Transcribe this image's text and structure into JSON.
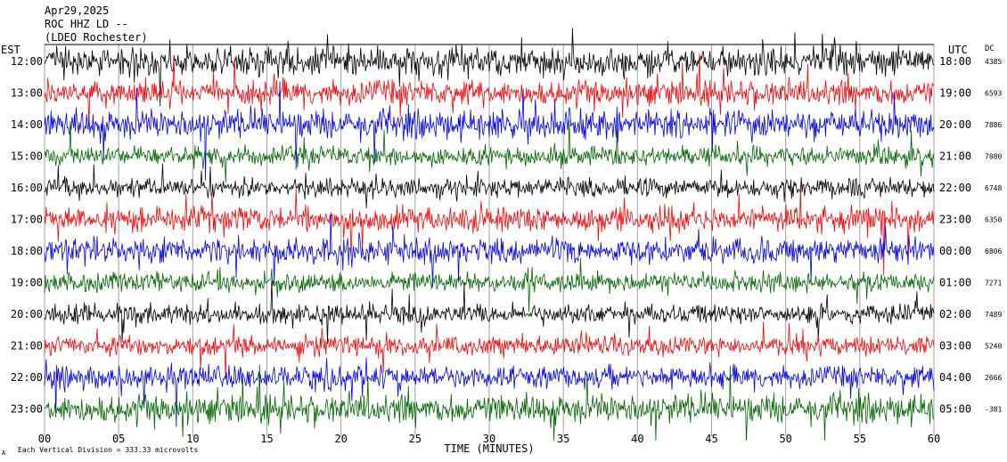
{
  "header": {
    "date": "Apr29,2025",
    "station": "ROC HHZ LD --",
    "location": "(LDEO Rochester)"
  },
  "labels": {
    "left_tz": "EST",
    "right_tz": "UTC",
    "dc": "DC",
    "xlabel": "TIME (MINUTES)",
    "footer": "Each Vertical Division = 333.33 microvolts",
    "corner_mark": "A"
  },
  "colors": {
    "cycle": [
      "#000000",
      "#ff0000",
      "#0000ff",
      "#006400"
    ],
    "grid": "#a0a0a0"
  },
  "chart_data": {
    "type": "line",
    "xlabel": "TIME (MINUTES)",
    "xlim": [
      0,
      60
    ],
    "x_ticks": [
      "00",
      "05",
      "10",
      "15",
      "20",
      "25",
      "30",
      "35",
      "40",
      "45",
      "50",
      "55",
      "60"
    ],
    "x_tick_values": [
      0,
      5,
      10,
      15,
      20,
      25,
      30,
      35,
      40,
      45,
      50,
      55,
      60
    ],
    "rows": [
      {
        "est": "12:00",
        "utc": "18:00",
        "dc": "4385",
        "color": "black",
        "amplitude": 0.9
      },
      {
        "est": "13:00",
        "utc": "19:00",
        "dc": "6593",
        "color": "red",
        "amplitude": 0.8
      },
      {
        "est": "14:00",
        "utc": "20:00",
        "dc": "7886",
        "color": "blue",
        "amplitude": 0.9
      },
      {
        "est": "15:00",
        "utc": "21:00",
        "dc": "7080",
        "color": "green",
        "amplitude": 0.6
      },
      {
        "est": "16:00",
        "utc": "22:00",
        "dc": "6748",
        "color": "black",
        "amplitude": 0.6
      },
      {
        "est": "17:00",
        "utc": "23:00",
        "dc": "6350",
        "color": "red",
        "amplitude": 0.8
      },
      {
        "est": "18:00",
        "utc": "00:00",
        "dc": "6806",
        "color": "blue",
        "amplitude": 0.8
      },
      {
        "est": "19:00",
        "utc": "01:00",
        "dc": "7271",
        "color": "green",
        "amplitude": 0.6
      },
      {
        "est": "20:00",
        "utc": "02:00",
        "dc": "7489",
        "color": "black",
        "amplitude": 0.6
      },
      {
        "est": "21:00",
        "utc": "03:00",
        "dc": "5240",
        "color": "red",
        "amplitude": 0.6
      },
      {
        "est": "22:00",
        "utc": "04:00",
        "dc": "2666",
        "color": "blue",
        "amplitude": 0.7
      },
      {
        "est": "23:00",
        "utc": "05:00",
        "dc": "-381",
        "color": "green",
        "amplitude": 0.9
      }
    ]
  }
}
